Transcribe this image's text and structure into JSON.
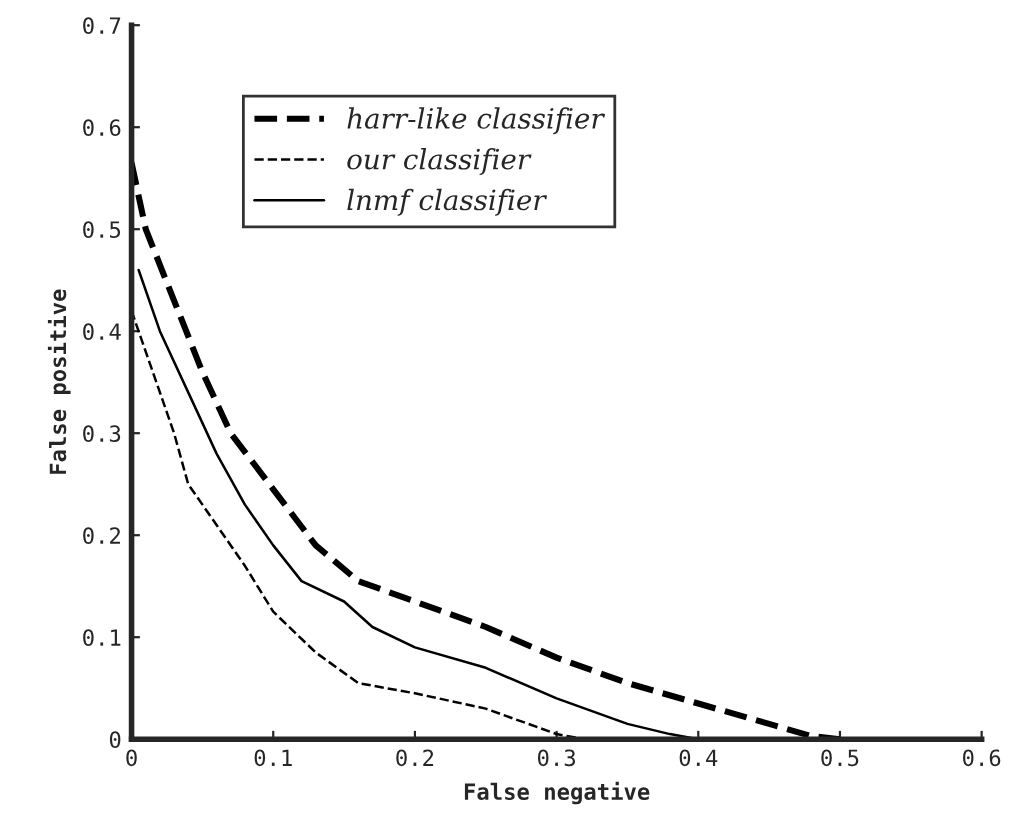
{
  "chart_data": {
    "type": "line",
    "xlabel": "False negative",
    "ylabel": "False positive",
    "xlim": [
      0,
      0.6
    ],
    "xticks": [
      0,
      0.1,
      0.2,
      0.3,
      0.4,
      0.5,
      0.6
    ],
    "ylim": [
      0,
      0.7
    ],
    "yticks": [
      0,
      0.1,
      0.2,
      0.3,
      0.4,
      0.5,
      0.6,
      0.7
    ],
    "grid": false,
    "legend": "top",
    "marker": "none",
    "series": [
      {
        "name": "harr-like classifier",
        "color": "#000000",
        "line_style": "dashed",
        "x": [
          0,
          0.01,
          0.03,
          0.05,
          0.07,
          0.1,
          0.13,
          0.16,
          0.2,
          0.25,
          0.3,
          0.35,
          0.4,
          0.45,
          0.48,
          0.5
        ],
        "values": [
          0.565,
          0.5,
          0.43,
          0.36,
          0.3,
          0.245,
          0.19,
          0.155,
          0.135,
          0.11,
          0.08,
          0.055,
          0.035,
          0.015,
          0.003,
          0
        ]
      },
      {
        "name": "our classifier",
        "color": "#000000",
        "line_style": "dashed",
        "x": [
          0,
          0.01,
          0.03,
          0.04,
          0.06,
          0.08,
          0.1,
          0.13,
          0.16,
          0.2,
          0.25,
          0.28,
          0.3,
          0.32
        ],
        "values": [
          0.42,
          0.38,
          0.3,
          0.25,
          0.21,
          0.17,
          0.125,
          0.085,
          0.055,
          0.045,
          0.03,
          0.015,
          0.005,
          0
        ]
      },
      {
        "name": "lnmf classifier",
        "color": "#000000",
        "line_style": "solid",
        "x": [
          0.005,
          0.02,
          0.04,
          0.06,
          0.08,
          0.1,
          0.12,
          0.15,
          0.17,
          0.2,
          0.25,
          0.3,
          0.35,
          0.38,
          0.4
        ],
        "values": [
          0.46,
          0.4,
          0.34,
          0.28,
          0.23,
          0.19,
          0.155,
          0.135,
          0.11,
          0.09,
          0.07,
          0.04,
          0.015,
          0.005,
          0
        ]
      }
    ]
  }
}
